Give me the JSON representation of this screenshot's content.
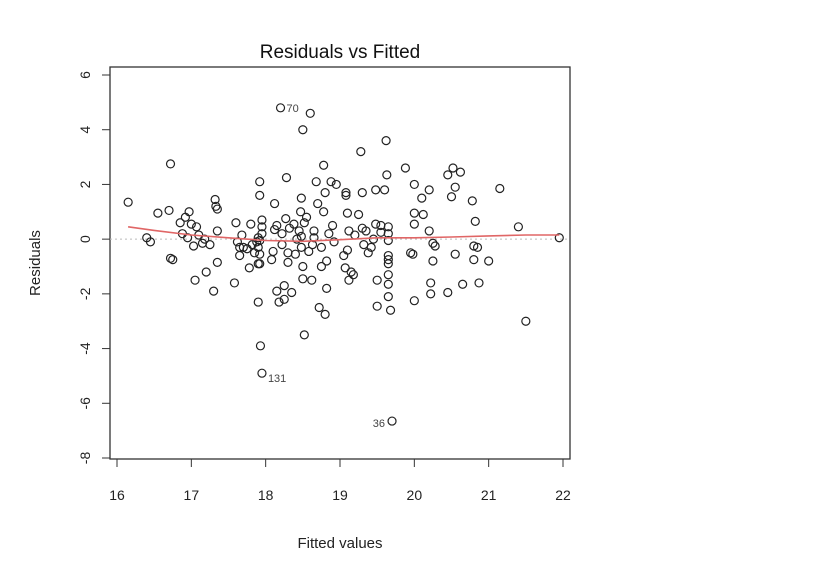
{
  "chart_data": {
    "type": "scatter",
    "title": "Residuals vs Fitted",
    "xlabel": "Fitted values",
    "ylabel": "Residuals",
    "xlim": [
      16,
      22
    ],
    "ylim": [
      -8,
      6
    ],
    "xticks": [
      "16",
      "17",
      "18",
      "19",
      "20",
      "21",
      "22"
    ],
    "yticks": [
      "-8",
      "-6",
      "-4",
      "-2",
      "0",
      "2",
      "4",
      "6"
    ],
    "grid": false,
    "zero_line": true,
    "marker": "open-circle",
    "colors": {
      "points": "#222222",
      "smooth": "#e06666",
      "zero": "#bbbbbb",
      "box": "#333333"
    },
    "points": [
      [
        16.15,
        1.35
      ],
      [
        16.4,
        0.05
      ],
      [
        16.45,
        -0.1
      ],
      [
        16.55,
        0.95
      ],
      [
        16.7,
        1.05
      ],
      [
        16.72,
        2.75
      ],
      [
        16.75,
        -0.75
      ],
      [
        16.72,
        -0.7
      ],
      [
        16.85,
        0.6
      ],
      [
        16.88,
        0.2
      ],
      [
        16.92,
        0.8
      ],
      [
        16.95,
        0.05
      ],
      [
        16.97,
        1.0
      ],
      [
        17.0,
        0.55
      ],
      [
        17.03,
        -0.25
      ],
      [
        17.05,
        -1.5
      ],
      [
        17.07,
        0.45
      ],
      [
        17.1,
        0.15
      ],
      [
        17.15,
        -0.15
      ],
      [
        17.18,
        0.0
      ],
      [
        17.2,
        -1.2
      ],
      [
        17.25,
        -0.2
      ],
      [
        17.3,
        -1.9
      ],
      [
        17.32,
        1.45
      ],
      [
        17.33,
        1.2
      ],
      [
        17.35,
        0.3
      ],
      [
        17.35,
        1.1
      ],
      [
        17.35,
        -0.85
      ],
      [
        17.58,
        -1.6
      ],
      [
        17.6,
        0.6
      ],
      [
        17.62,
        -0.1
      ],
      [
        17.65,
        -0.3
      ],
      [
        17.65,
        -0.6
      ],
      [
        17.68,
        0.15
      ],
      [
        17.7,
        -0.3
      ],
      [
        17.75,
        -0.35
      ],
      [
        17.78,
        -1.05
      ],
      [
        17.8,
        0.55
      ],
      [
        17.82,
        -0.2
      ],
      [
        17.85,
        -0.5
      ],
      [
        17.88,
        -0.1
      ],
      [
        17.9,
        0.05
      ],
      [
        17.9,
        -0.9
      ],
      [
        17.92,
        2.1
      ],
      [
        17.92,
        1.6
      ],
      [
        17.95,
        0.7
      ],
      [
        17.95,
        0.45
      ],
      [
        17.95,
        0.2
      ],
      [
        17.92,
        -0.05
      ],
      [
        17.9,
        -0.3
      ],
      [
        17.92,
        -0.55
      ],
      [
        17.92,
        -0.9
      ],
      [
        17.9,
        -2.3
      ],
      [
        17.93,
        -3.9
      ],
      [
        17.95,
        -4.9
      ],
      [
        18.08,
        -0.75
      ],
      [
        18.1,
        -0.45
      ],
      [
        18.12,
        0.35
      ],
      [
        18.12,
        1.3
      ],
      [
        18.15,
        -1.9
      ],
      [
        18.15,
        0.5
      ],
      [
        18.18,
        -2.3
      ],
      [
        18.2,
        4.8
      ],
      [
        18.22,
        -0.2
      ],
      [
        18.22,
        0.2
      ],
      [
        18.25,
        -1.7
      ],
      [
        18.25,
        -2.2
      ],
      [
        18.27,
        0.75
      ],
      [
        18.28,
        2.25
      ],
      [
        18.3,
        -0.5
      ],
      [
        18.3,
        -0.85
      ],
      [
        18.32,
        0.4
      ],
      [
        18.35,
        -1.95
      ],
      [
        18.38,
        0.55
      ],
      [
        18.4,
        -0.55
      ],
      [
        18.42,
        0.0
      ],
      [
        18.45,
        0.3
      ],
      [
        18.47,
        1.0
      ],
      [
        18.48,
        1.5
      ],
      [
        18.48,
        0.1
      ],
      [
        18.48,
        -0.3
      ],
      [
        18.5,
        -1.0
      ],
      [
        18.5,
        -1.45
      ],
      [
        18.5,
        4.0
      ],
      [
        18.52,
        -3.5
      ],
      [
        18.52,
        0.6
      ],
      [
        18.55,
        0.8
      ],
      [
        18.58,
        -0.45
      ],
      [
        18.6,
        4.6
      ],
      [
        18.62,
        -1.5
      ],
      [
        18.63,
        -0.2
      ],
      [
        18.65,
        0.3
      ],
      [
        18.65,
        0.05
      ],
      [
        18.68,
        2.1
      ],
      [
        18.7,
        1.3
      ],
      [
        18.72,
        -2.5
      ],
      [
        18.75,
        -0.3
      ],
      [
        18.75,
        -1.0
      ],
      [
        18.78,
        1.0
      ],
      [
        18.78,
        2.7
      ],
      [
        18.8,
        1.7
      ],
      [
        18.8,
        -2.75
      ],
      [
        18.82,
        -1.8
      ],
      [
        18.82,
        -0.8
      ],
      [
        18.85,
        0.2
      ],
      [
        18.88,
        2.1
      ],
      [
        18.9,
        0.5
      ],
      [
        18.92,
        -0.1
      ],
      [
        18.95,
        2.0
      ],
      [
        19.05,
        -0.6
      ],
      [
        19.07,
        -1.05
      ],
      [
        19.08,
        1.6
      ],
      [
        19.08,
        1.7
      ],
      [
        19.1,
        0.95
      ],
      [
        19.1,
        -0.4
      ],
      [
        19.12,
        -1.5
      ],
      [
        19.12,
        0.3
      ],
      [
        19.15,
        -1.2
      ],
      [
        19.18,
        -1.3
      ],
      [
        19.2,
        0.15
      ],
      [
        19.25,
        0.9
      ],
      [
        19.28,
        3.2
      ],
      [
        19.3,
        0.4
      ],
      [
        19.3,
        1.7
      ],
      [
        19.32,
        -0.2
      ],
      [
        19.35,
        0.3
      ],
      [
        19.38,
        -0.5
      ],
      [
        19.42,
        -0.3
      ],
      [
        19.45,
        0.0
      ],
      [
        19.48,
        1.8
      ],
      [
        19.48,
        0.55
      ],
      [
        19.5,
        -1.5
      ],
      [
        19.5,
        -2.45
      ],
      [
        19.55,
        0.5
      ],
      [
        19.55,
        0.25
      ],
      [
        19.6,
        1.8
      ],
      [
        19.62,
        3.6
      ],
      [
        19.63,
        2.35
      ],
      [
        19.65,
        -0.6
      ],
      [
        19.65,
        -0.75
      ],
      [
        19.65,
        -0.9
      ],
      [
        19.65,
        0.45
      ],
      [
        19.65,
        0.2
      ],
      [
        19.65,
        -0.05
      ],
      [
        19.65,
        -1.3
      ],
      [
        19.65,
        -1.65
      ],
      [
        19.65,
        -2.1
      ],
      [
        19.68,
        -2.6
      ],
      [
        19.7,
        -6.65
      ],
      [
        19.88,
        2.6
      ],
      [
        19.95,
        -0.5
      ],
      [
        19.98,
        -0.55
      ],
      [
        20.0,
        2.0
      ],
      [
        20.0,
        0.95
      ],
      [
        20.0,
        0.55
      ],
      [
        20.0,
        -2.25
      ],
      [
        20.1,
        1.5
      ],
      [
        20.12,
        0.9
      ],
      [
        20.2,
        1.8
      ],
      [
        20.2,
        0.3
      ],
      [
        20.22,
        -1.6
      ],
      [
        20.22,
        -2.0
      ],
      [
        20.25,
        -0.15
      ],
      [
        20.25,
        -0.8
      ],
      [
        20.28,
        -0.25
      ],
      [
        20.45,
        2.35
      ],
      [
        20.45,
        -1.95
      ],
      [
        20.5,
        1.55
      ],
      [
        20.52,
        2.6
      ],
      [
        20.55,
        1.9
      ],
      [
        20.55,
        -0.55
      ],
      [
        20.62,
        2.45
      ],
      [
        20.65,
        -1.65
      ],
      [
        20.78,
        1.4
      ],
      [
        20.8,
        -0.25
      ],
      [
        20.8,
        -0.75
      ],
      [
        20.82,
        0.65
      ],
      [
        20.85,
        -0.3
      ],
      [
        20.87,
        -1.6
      ],
      [
        21.0,
        -0.8
      ],
      [
        21.15,
        1.85
      ],
      [
        21.4,
        0.45
      ],
      [
        21.5,
        -3.0
      ],
      [
        21.95,
        0.05
      ]
    ],
    "smooth_line": [
      [
        16.15,
        0.45
      ],
      [
        16.5,
        0.32
      ],
      [
        17.0,
        0.15
      ],
      [
        17.5,
        0.05
      ],
      [
        18.0,
        -0.05
      ],
      [
        18.5,
        -0.08
      ],
      [
        19.0,
        -0.02
      ],
      [
        19.5,
        0.05
      ],
      [
        20.0,
        0.05
      ],
      [
        20.5,
        0.08
      ],
      [
        21.0,
        0.12
      ],
      [
        21.5,
        0.15
      ],
      [
        21.95,
        0.15
      ]
    ],
    "annotations": [
      {
        "text": "70",
        "x": 18.2,
        "y": 4.8,
        "anchor": "right"
      },
      {
        "text": "131",
        "x": 17.95,
        "y": -4.9,
        "anchor": "right-below"
      },
      {
        "text": "36",
        "x": 19.7,
        "y": -6.65,
        "anchor": "left"
      }
    ]
  }
}
